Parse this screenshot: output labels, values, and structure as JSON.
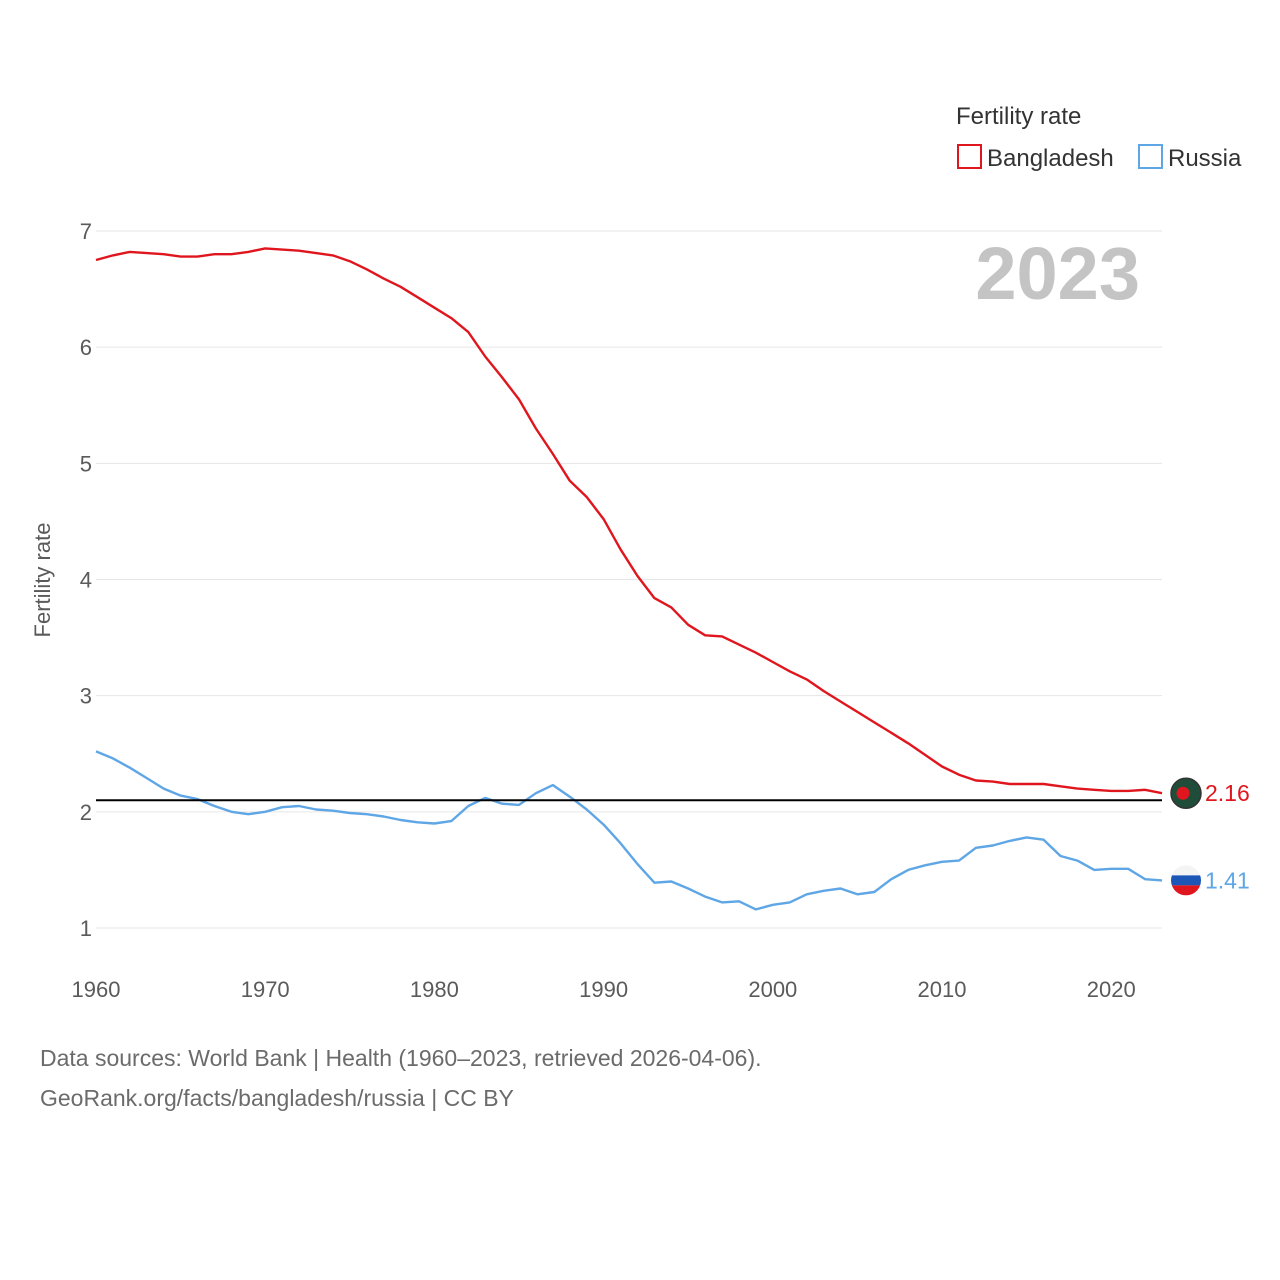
{
  "chart_data": {
    "type": "line",
    "year_display": "2023",
    "ylabel": "Fertility rate",
    "xlim": [
      1960,
      2023
    ],
    "ylim": [
      0.85,
      7.2
    ],
    "yticks": [
      1,
      2,
      3,
      4,
      5,
      6,
      7
    ],
    "xticks": [
      1960,
      1970,
      1980,
      1990,
      2000,
      2010,
      2020
    ],
    "reference_line": 2.1,
    "legend": {
      "title": "Fertility rate"
    },
    "series": [
      {
        "name": "Bangladesh",
        "color": "#e0161e",
        "end_label": "2.16",
        "values": [
          6.75,
          6.79,
          6.82,
          6.81,
          6.8,
          6.78,
          6.78,
          6.8,
          6.8,
          6.82,
          6.85,
          6.84,
          6.83,
          6.81,
          6.79,
          6.74,
          6.67,
          6.59,
          6.52,
          6.43,
          6.34,
          6.25,
          6.13,
          5.92,
          5.74,
          5.55,
          5.3,
          5.08,
          4.85,
          4.71,
          4.52,
          4.26,
          4.03,
          3.84,
          3.76,
          3.61,
          3.52,
          3.51,
          3.44,
          3.37,
          3.29,
          3.21,
          3.14,
          3.04,
          2.95,
          2.86,
          2.77,
          2.68,
          2.59,
          2.49,
          2.39,
          2.32,
          2.27,
          2.26,
          2.24,
          2.24,
          2.24,
          2.22,
          2.2,
          2.19,
          2.18,
          2.18,
          2.19,
          2.16
        ]
      },
      {
        "name": "Russia",
        "color": "#5ea6e5",
        "end_label": "1.41",
        "values": [
          2.52,
          2.46,
          2.38,
          2.29,
          2.2,
          2.14,
          2.11,
          2.05,
          2.0,
          1.98,
          2.0,
          2.04,
          2.05,
          2.02,
          2.01,
          1.99,
          1.98,
          1.96,
          1.93,
          1.91,
          1.9,
          1.92,
          2.05,
          2.12,
          2.07,
          2.06,
          2.16,
          2.23,
          2.13,
          2.02,
          1.89,
          1.73,
          1.55,
          1.39,
          1.4,
          1.34,
          1.27,
          1.22,
          1.23,
          1.16,
          1.2,
          1.22,
          1.29,
          1.32,
          1.34,
          1.29,
          1.31,
          1.42,
          1.5,
          1.54,
          1.57,
          1.58,
          1.69,
          1.71,
          1.75,
          1.78,
          1.76,
          1.62,
          1.58,
          1.5,
          1.51,
          1.51,
          1.42,
          1.41
        ]
      }
    ]
  },
  "footer": {
    "sources": "Data sources: World Bank | Health (1960–2023, retrieved 2026-04-06).",
    "attribution": "GeoRank.org/facts/bangladesh/russia | CC BY"
  }
}
